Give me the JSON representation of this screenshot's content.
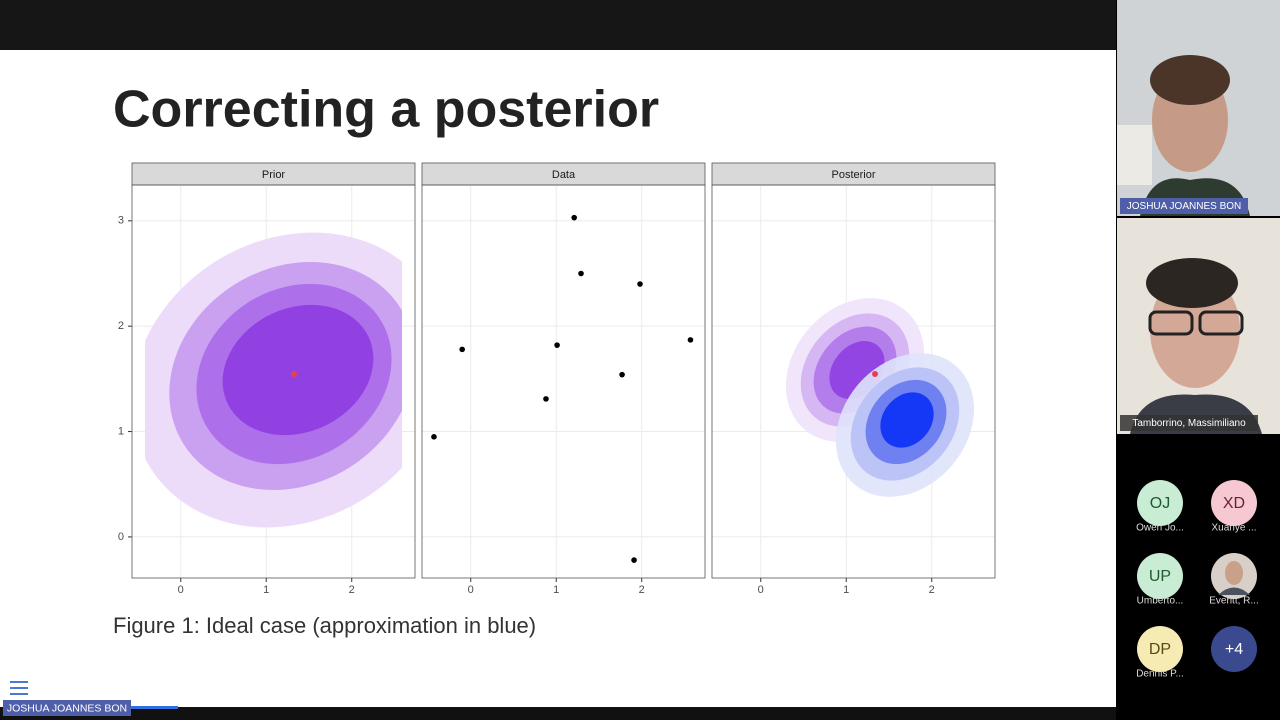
{
  "slide": {
    "title": "Correcting a posterior",
    "caption": "Figure 1: Ideal case (approximation in blue)",
    "chart": {
      "type": "scatter",
      "panels": [
        "Prior",
        "Data",
        "Posterior"
      ],
      "data_panel": 1,
      "x": [
        -0.43,
        -0.1,
        1.21,
        1.29,
        1.98,
        1.01,
        0.88,
        1.77,
        2.57,
        1.91
      ],
      "y": [
        0.95,
        1.78,
        3.03,
        2.5,
        2.4,
        1.82,
        1.31,
        1.54,
        1.87,
        -0.22
      ],
      "color": "#000000",
      "xlim": [
        -0.57,
        2.74
      ],
      "ylim": [
        -0.39,
        3.34
      ],
      "xticks": [
        0,
        1,
        2
      ],
      "yticks": [
        0,
        1,
        2,
        3
      ],
      "grid": true
    }
  },
  "participants": {
    "video": [
      "JOSHUA JOANNES BON",
      "Tamborrino, Massimiliano"
    ],
    "tiles": [
      {
        "initials": "OJ",
        "name": "Owen Jo..."
      },
      {
        "initials": "XD",
        "name": "Xuanye ..."
      },
      {
        "initials": "UP",
        "name": "Umberto..."
      },
      {
        "initials": null,
        "name": "Everitt, R..."
      },
      {
        "initials": "DP",
        "name": "Dennis P..."
      },
      {
        "initials": "+4",
        "name": null
      }
    ]
  },
  "self_label": "JOSHUA JOANNES BON"
}
